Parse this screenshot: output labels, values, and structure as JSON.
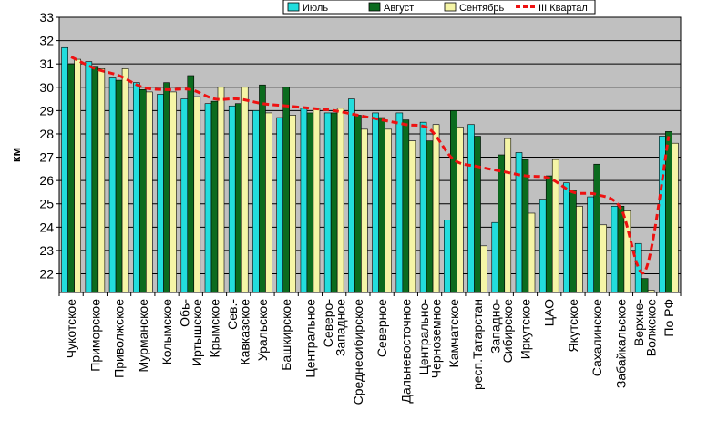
{
  "chart_data": {
    "type": "bar",
    "ylabel": "км",
    "ylim": [
      21.2,
      33
    ],
    "yticks": [
      22,
      23,
      24,
      25,
      26,
      27,
      28,
      29,
      30,
      31,
      32,
      33
    ],
    "grid": true,
    "legend_position": "top-right",
    "categories": [
      "Чукотское",
      "Приморское",
      "Приволжское",
      "Мурманское",
      "Колымское",
      "Обь-Иртышское",
      "Крымское",
      "Сев.-Кавказское",
      "Уральское",
      "Башкирское",
      "Центральное",
      "Северо-Западное",
      "Среднесибирское",
      "Северное",
      "Дальневосточное",
      "Центрально-Черноземное",
      "Камчатское",
      "респ.Татарстан",
      "Западно-Сибирское",
      "Иркутское",
      "ЦАО",
      "Якутское",
      "Сахалинское",
      "Забайкальское",
      "Верхне-Волжское",
      "По РФ"
    ],
    "category_labels": [
      [
        "Чукотское"
      ],
      [
        "Приморское"
      ],
      [
        "Приволжское"
      ],
      [
        "Мурманское"
      ],
      [
        "Колымское"
      ],
      [
        "Обь-",
        "Иртышское"
      ],
      [
        "Крымское"
      ],
      [
        "Сев.-",
        "Кавказское"
      ],
      [
        "Уральское"
      ],
      [
        "Башкирское"
      ],
      [
        "Центральное"
      ],
      [
        "Северо-",
        "Западное"
      ],
      [
        "Среднесибирское"
      ],
      [
        "Северное"
      ],
      [
        "Дальневосточное"
      ],
      [
        "Центрально-",
        "Черноземное"
      ],
      [
        "Камчатское"
      ],
      [
        "респ.Татарстан"
      ],
      [
        "Западно-",
        "Сибирское"
      ],
      [
        "Иркутское"
      ],
      [
        "ЦАО"
      ],
      [
        "Якутское"
      ],
      [
        "Сахалинское"
      ],
      [
        "Забайкальское"
      ],
      [
        "Верхне-",
        "Волжское"
      ],
      [
        "По РФ"
      ]
    ],
    "series": [
      {
        "name": "Июль",
        "type": "bar",
        "color": "#22dddd",
        "values": [
          31.7,
          31.1,
          30.4,
          30.2,
          29.7,
          29.5,
          29.3,
          29.2,
          29.0,
          28.7,
          29.1,
          28.9,
          29.5,
          28.9,
          28.9,
          28.5,
          24.3,
          28.4,
          24.2,
          27.2,
          25.2,
          25.9,
          25.3,
          24.9,
          23.3,
          27.9
        ]
      },
      {
        "name": "Август",
        "type": "bar",
        "color": "#0b6b1e",
        "values": [
          31.0,
          30.9,
          30.3,
          29.9,
          30.2,
          30.5,
          29.4,
          29.3,
          30.1,
          30.0,
          28.9,
          28.9,
          28.8,
          28.7,
          28.6,
          27.7,
          29.0,
          27.9,
          27.1,
          26.9,
          26.2,
          25.6,
          26.7,
          24.9,
          21.8,
          28.1
        ]
      },
      {
        "name": "Сентябрь",
        "type": "bar",
        "color": "#f5f5a6",
        "values": [
          31.2,
          30.8,
          30.8,
          29.8,
          29.8,
          29.6,
          30.0,
          30.0,
          28.9,
          28.8,
          29.1,
          29.1,
          28.2,
          28.2,
          27.7,
          28.4,
          28.3,
          23.2,
          27.8,
          24.6,
          26.9,
          24.9,
          24.1,
          24.7,
          21.3,
          27.6
        ]
      },
      {
        "name": "III Квартал",
        "type": "line",
        "color": "#ee1111",
        "values": [
          31.3,
          30.8,
          30.5,
          30.0,
          29.9,
          29.9,
          29.5,
          29.5,
          29.3,
          29.2,
          29.1,
          29.0,
          28.8,
          28.6,
          28.4,
          28.2,
          26.9,
          26.6,
          26.4,
          26.2,
          26.1,
          25.5,
          25.4,
          24.8,
          22.1,
          27.9
        ]
      }
    ]
  }
}
